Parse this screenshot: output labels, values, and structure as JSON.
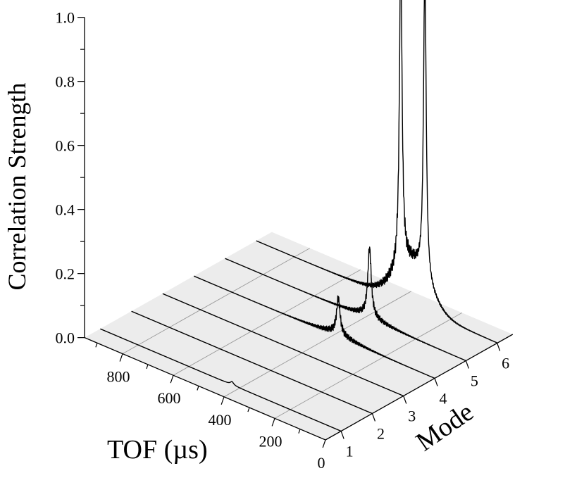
{
  "chart_data": {
    "type": "waterfall-3d",
    "title": "",
    "zlabel": "Correlation Strength",
    "xlabel": "TOF (µs)",
    "ylabel": "Mode",
    "zlim": [
      0,
      1.0
    ],
    "z_ticks": [
      "0.0",
      "0.2",
      "0.4",
      "0.6",
      "0.8",
      "1.0"
    ],
    "tof_ticks": [
      "0",
      "200",
      "400",
      "600",
      "800"
    ],
    "mode_ticks": [
      "1",
      "2",
      "3",
      "4",
      "5",
      "6"
    ],
    "tof_range": [
      0,
      950
    ],
    "mode_range": [
      0.5,
      6.5
    ],
    "grid": true,
    "series": [
      {
        "mode": 1,
        "peak_tof": 430,
        "peak_value": 0.01,
        "width": 8
      },
      {
        "mode": 2,
        "peak_tof": 380,
        "peak_value": 0.0,
        "width": 8
      },
      {
        "mode": 3,
        "peak_tof": 380,
        "peak_value": 0.0,
        "width": 8
      },
      {
        "mode": 4,
        "peak_tof": 380,
        "peak_value": 0.11,
        "width": 8
      },
      {
        "mode": 5,
        "peak_tof": 380,
        "peak_value": 0.21,
        "width": 8
      },
      {
        "mode": 6,
        "peak_tof": 380,
        "peak_value": 1.0,
        "width": 6
      }
    ],
    "mode6_secondary_peak": {
      "tof": 285,
      "value": 1.0
    }
  }
}
